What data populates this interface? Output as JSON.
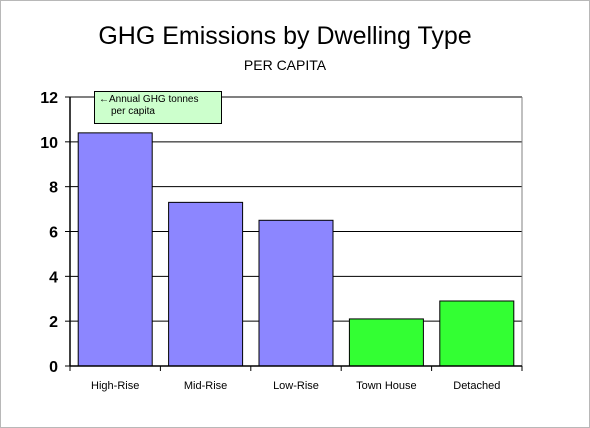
{
  "chart_data": {
    "type": "bar",
    "title": "GHG Emissions by Dwelling Type",
    "subtitle": "PER CAPITA",
    "categories": [
      "High-Rise",
      "Mid-Rise",
      "Low-Rise",
      "Town House",
      "Detached"
    ],
    "values": [
      10.4,
      7.3,
      6.5,
      2.1,
      2.9
    ],
    "bar_colors": [
      "#8c86ff",
      "#8c86ff",
      "#8c86ff",
      "#33ff33",
      "#33ff33"
    ],
    "ylim": [
      0,
      12
    ],
    "yticks": [
      0,
      2,
      4,
      6,
      8,
      10,
      12
    ],
    "grid": true,
    "annotation": {
      "arrow": "←",
      "line1": "Annual GHG tonnes",
      "line2": "per capita"
    }
  }
}
